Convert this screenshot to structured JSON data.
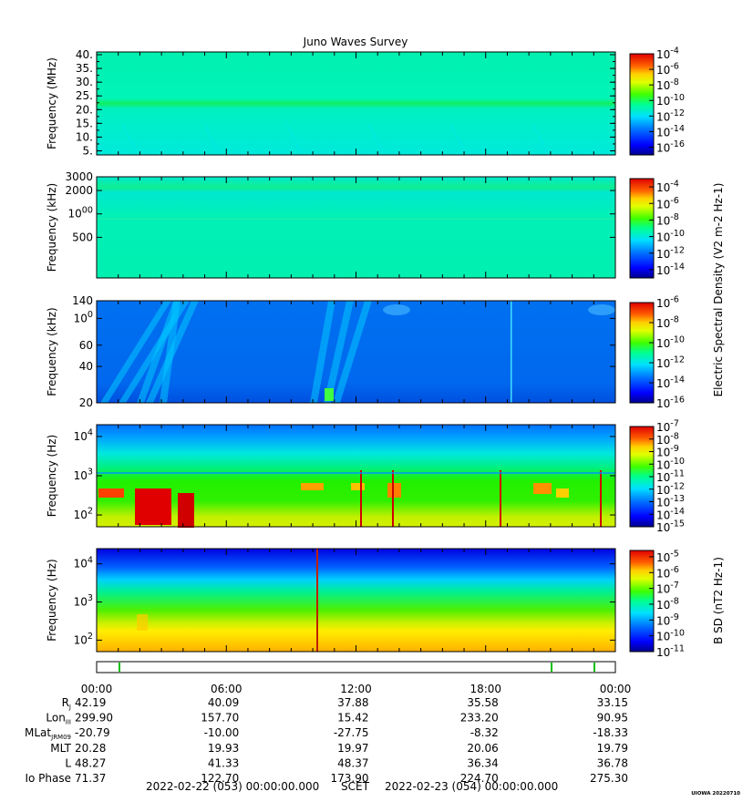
{
  "title": "Juno Waves Survey",
  "footer": {
    "start": "2022-02-22 (053) 00:00:00.000",
    "frame": "SCET",
    "end": "2022-02-23 (054) 00:00:00.000",
    "credit": "UIOWA 20220710"
  },
  "colors": {
    "jet": [
      "#00008f",
      "#0000ff",
      "#0060ff",
      "#00c0ff",
      "#20ffe0",
      "#00ff80",
      "#40ff00",
      "#c0ff00",
      "#ffff00",
      "#ffa000",
      "#ff4000",
      "#d00000",
      "#800000"
    ]
  },
  "chart_data": [
    {
      "type": "heatmap",
      "id": "p1",
      "ylabel": "Frequency (MHz)",
      "yticks": [
        "40.",
        "35.",
        "30.",
        "25.",
        "20.",
        "15.",
        "10.",
        "5."
      ],
      "ytick_values": [
        40,
        35,
        30,
        25,
        20,
        15,
        10,
        5
      ],
      "ylim": [
        3.5,
        41
      ],
      "yscale": "linear",
      "colorbar": {
        "labels": [
          "10-4",
          "10-6",
          "10-8",
          "10-10",
          "10-12",
          "10-14",
          "10-16"
        ],
        "exps": [
          -4,
          -6,
          -8,
          -10,
          -12,
          -14,
          -16
        ],
        "range": [
          -4,
          -17
        ]
      },
      "color_label": ""
    },
    {
      "type": "heatmap",
      "id": "p2",
      "ylabel": "Frequency (kHz)",
      "yticks": [
        "3000",
        "2000",
        "1000",
        "500"
      ],
      "ytick_values": [
        3000,
        2000,
        1000,
        500
      ],
      "ylim": [
        150,
        3000
      ],
      "yscale": "log",
      "colorbar": {
        "labels": [
          "10-4",
          "10-6",
          "10-8",
          "10-10",
          "10-12",
          "10-14"
        ],
        "exps": [
          -4,
          -6,
          -8,
          -10,
          -12,
          -14
        ],
        "range": [
          -3,
          -15
        ]
      },
      "color_label": ""
    },
    {
      "type": "heatmap",
      "id": "p3",
      "ylabel": "Frequency (kHz)",
      "yticks": [
        "140",
        "100",
        "60",
        "40",
        "20"
      ],
      "ytick_values": [
        140,
        100,
        60,
        40,
        20
      ],
      "ylim": [
        20,
        140
      ],
      "yscale": "log",
      "colorbar": {
        "labels": [
          "10-6",
          "10-8",
          "10-10",
          "10-12",
          "10-14",
          "10-16"
        ],
        "exps": [
          -6,
          -8,
          -10,
          -12,
          -14,
          -16
        ],
        "range": [
          -6,
          -16
        ]
      },
      "color_label": "Electric Spectral Density (V2 m-2 Hz-1)"
    },
    {
      "type": "heatmap",
      "id": "p4",
      "ylabel": "Frequency (Hz)",
      "yticks": [
        "104",
        "103",
        "102"
      ],
      "ytick_values": [
        10000,
        1000,
        100
      ],
      "ylim": [
        50,
        20000
      ],
      "yscale": "log",
      "colorbar": {
        "labels": [
          "10-7",
          "10-8",
          "10-9",
          "10-10",
          "10-11",
          "10-12",
          "10-13",
          "10-14",
          "10-15"
        ],
        "exps": [
          -7,
          -8,
          -9,
          -10,
          -11,
          -12,
          -13,
          -14,
          -15
        ],
        "range": [
          -7,
          -15
        ]
      },
      "color_label": ""
    },
    {
      "type": "heatmap",
      "id": "p5",
      "ylabel": "Frequency (Hz)",
      "yticks": [
        "104",
        "103",
        "102"
      ],
      "ytick_values": [
        10000,
        1000,
        100
      ],
      "ylim": [
        50,
        25000
      ],
      "yscale": "log",
      "colorbar": {
        "labels": [
          "10-5",
          "10-6",
          "10-7",
          "10-8",
          "10-9",
          "10-10",
          "10-11"
        ],
        "exps": [
          -5,
          -6,
          -7,
          -8,
          -9,
          -10,
          -11
        ],
        "range": [
          -4.6,
          -11
        ]
      },
      "color_label": "B SD (nT2 Hz-1)"
    }
  ],
  "xaxis": {
    "ticks": [
      "00:00",
      "06:00",
      "12:00",
      "18:00",
      "00:00"
    ],
    "tick_hours": [
      0,
      6,
      12,
      18,
      24
    ],
    "xlim_hours": [
      0,
      24
    ]
  },
  "ephemeris": {
    "rows": [
      {
        "label": "RJ",
        "values": [
          "42.19",
          "40.09",
          "37.88",
          "35.58",
          "33.15"
        ]
      },
      {
        "label": "LonIII",
        "values": [
          "299.90",
          "157.70",
          "15.42",
          "233.20",
          "90.95"
        ]
      },
      {
        "label": "MLatJRM09",
        "values": [
          "-20.79",
          "-10.00",
          "-27.75",
          "-8.32",
          "-18.33"
        ]
      },
      {
        "label": "MLT",
        "values": [
          "20.28",
          "19.93",
          "19.97",
          "20.06",
          "19.79"
        ]
      },
      {
        "label": "L",
        "values": [
          "48.27",
          "41.33",
          "48.37",
          "36.34",
          "36.78"
        ]
      },
      {
        "label": "Io Phase",
        "values": [
          "71.37",
          "122.70",
          "173.90",
          "224.70",
          "275.30"
        ]
      }
    ]
  }
}
